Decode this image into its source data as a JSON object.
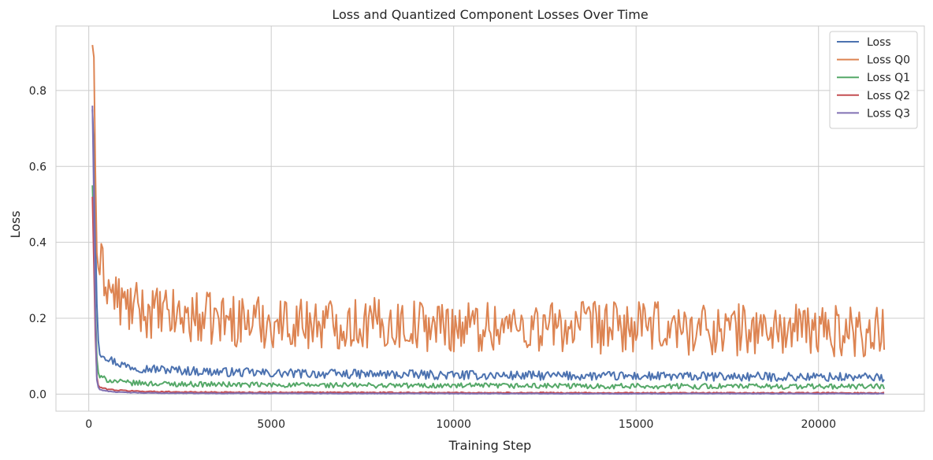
{
  "chart_data": {
    "type": "line",
    "title": "Loss and Quantized Component Losses Over Time",
    "xlabel": "Training Step",
    "ylabel": "Loss",
    "xlim": [
      -900,
      22900
    ],
    "ylim": [
      -0.045,
      0.97
    ],
    "xticks": [
      0,
      5000,
      10000,
      15000,
      20000
    ],
    "xtick_labels": [
      "0",
      "5000",
      "10000",
      "15000",
      "20000"
    ],
    "yticks": [
      0.0,
      0.2,
      0.4,
      0.6,
      0.8
    ],
    "ytick_labels": [
      "0.0",
      "0.2",
      "0.4",
      "0.6",
      "0.8"
    ],
    "grid": true,
    "legend_position": "top-right",
    "x_range": [
      100,
      21800
    ],
    "series": [
      {
        "name": "Loss",
        "color": "#4c72b0",
        "points": [
          [
            100,
            0.75
          ],
          [
            150,
            0.62
          ],
          [
            200,
            0.3
          ],
          [
            250,
            0.15
          ],
          [
            300,
            0.11
          ],
          [
            400,
            0.105
          ],
          [
            600,
            0.09
          ],
          [
            800,
            0.082
          ],
          [
            1000,
            0.075
          ],
          [
            1500,
            0.068
          ],
          [
            2000,
            0.065
          ],
          [
            3000,
            0.06
          ],
          [
            5000,
            0.055
          ],
          [
            8000,
            0.052
          ],
          [
            10000,
            0.05
          ],
          [
            15000,
            0.047
          ],
          [
            20000,
            0.045
          ],
          [
            21800,
            0.044
          ]
        ],
        "noise": 0.012
      },
      {
        "name": "Loss Q0",
        "color": "#dd8452",
        "points": [
          [
            100,
            0.92
          ],
          [
            150,
            0.88
          ],
          [
            200,
            0.4
          ],
          [
            250,
            0.33
          ],
          [
            300,
            0.34
          ],
          [
            400,
            0.32
          ],
          [
            600,
            0.27
          ],
          [
            800,
            0.25
          ],
          [
            1000,
            0.23
          ],
          [
            1500,
            0.22
          ],
          [
            2000,
            0.21
          ],
          [
            3000,
            0.2
          ],
          [
            5000,
            0.19
          ],
          [
            8000,
            0.185
          ],
          [
            10000,
            0.18
          ],
          [
            15000,
            0.175
          ],
          [
            20000,
            0.168
          ],
          [
            21800,
            0.165
          ]
        ],
        "noise": 0.07
      },
      {
        "name": "Loss Q1",
        "color": "#55a868",
        "points": [
          [
            100,
            0.55
          ],
          [
            150,
            0.4
          ],
          [
            200,
            0.12
          ],
          [
            250,
            0.06
          ],
          [
            300,
            0.045
          ],
          [
            500,
            0.038
          ],
          [
            800,
            0.033
          ],
          [
            1000,
            0.03
          ],
          [
            2000,
            0.027
          ],
          [
            5000,
            0.024
          ],
          [
            10000,
            0.022
          ],
          [
            15000,
            0.021
          ],
          [
            20000,
            0.02
          ],
          [
            21800,
            0.02
          ]
        ],
        "noise": 0.007
      },
      {
        "name": "Loss Q2",
        "color": "#c44e52",
        "points": [
          [
            100,
            0.52
          ],
          [
            150,
            0.3
          ],
          [
            200,
            0.06
          ],
          [
            250,
            0.025
          ],
          [
            300,
            0.018
          ],
          [
            500,
            0.013
          ],
          [
            800,
            0.01
          ],
          [
            1500,
            0.007
          ],
          [
            3000,
            0.005
          ],
          [
            8000,
            0.004
          ],
          [
            15000,
            0.003
          ],
          [
            21800,
            0.003
          ]
        ],
        "noise": 0.0015
      },
      {
        "name": "Loss Q3",
        "color": "#8172b3",
        "points": [
          [
            100,
            0.76
          ],
          [
            150,
            0.45
          ],
          [
            200,
            0.05
          ],
          [
            250,
            0.02
          ],
          [
            300,
            0.012
          ],
          [
            500,
            0.008
          ],
          [
            800,
            0.005
          ],
          [
            1500,
            0.003
          ],
          [
            3000,
            0.002
          ],
          [
            8000,
            0.0015
          ],
          [
            15000,
            0.001
          ],
          [
            21800,
            0.001
          ]
        ],
        "noise": 0.0008
      }
    ]
  }
}
